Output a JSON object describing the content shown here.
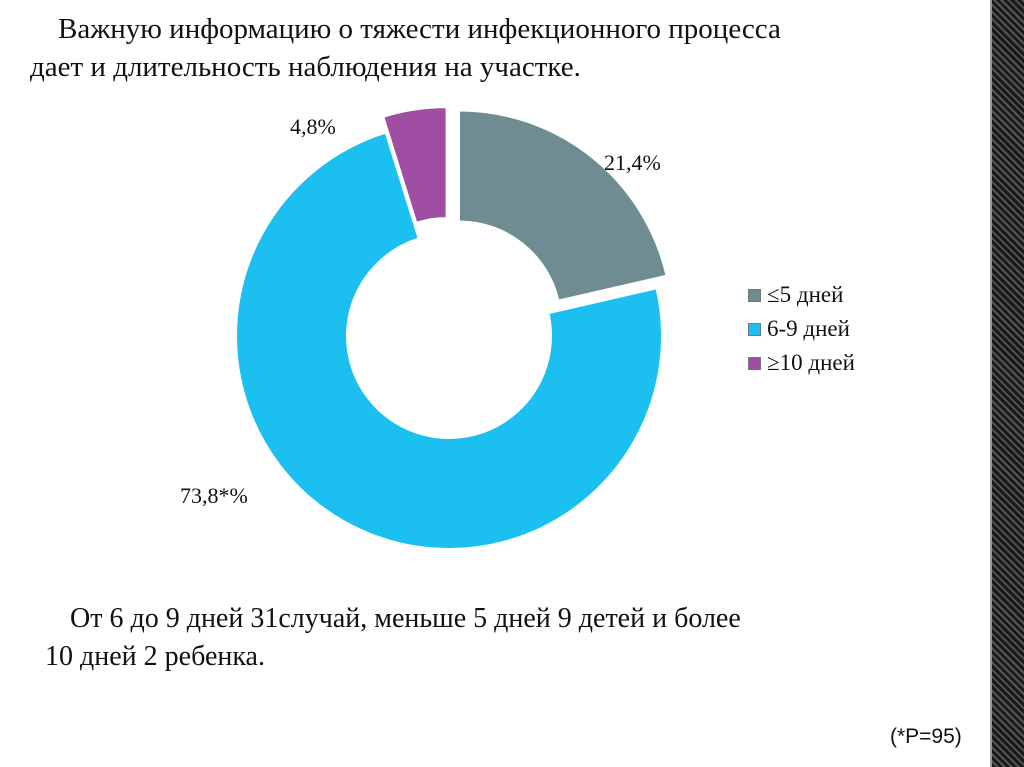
{
  "title": {
    "line1": "Важную информацию о тяжести инфекционного процесса",
    "line2": "дает и длительность наблюдения на участке."
  },
  "chart_data": {
    "type": "pie",
    "variant": "donut",
    "categories": [
      "≤5 дней",
      "6-9 дней",
      "≥10 дней"
    ],
    "values": [
      21.4,
      73.8,
      4.8
    ],
    "data_labels": [
      "21,4%",
      "73,8*%",
      "4,8%"
    ],
    "colors": [
      "#6e8c92",
      "#1cc0f0",
      "#a04ea4"
    ],
    "exploded": [
      true,
      false,
      true
    ],
    "legend_position": "right"
  },
  "summary": {
    "line1": "От 6 до 9 дней 31случай, меньше 5 дней 9 детей и более",
    "line2": "10 дней 2 ребенка."
  },
  "note": "(*P=95)"
}
